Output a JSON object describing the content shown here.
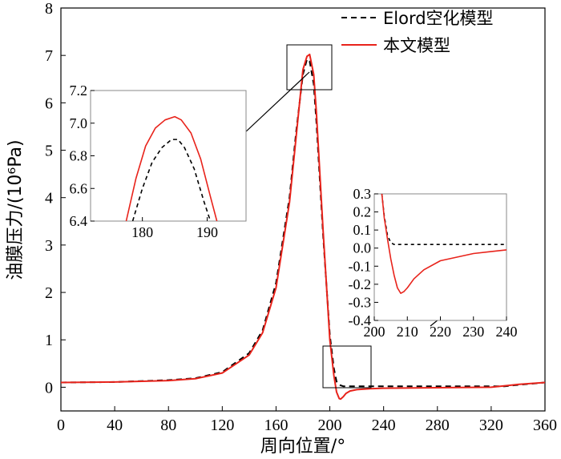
{
  "chart_data": [
    {
      "type": "line",
      "xlabel": "周向位置/°",
      "ylabel": "油膜压力/(10⁶Pa)",
      "xlim": [
        0,
        360
      ],
      "ylim": [
        -0.5,
        8
      ],
      "xticks": [
        0,
        40,
        80,
        120,
        160,
        200,
        240,
        280,
        320,
        360
      ],
      "yticks": [
        0,
        1,
        2,
        3,
        4,
        5,
        6,
        7,
        8
      ],
      "legend_position": "top-right",
      "series": [
        {
          "name": "Elord空化模型",
          "style": "dashed",
          "color": "#000000",
          "x": [
            0,
            40,
            80,
            100,
            120,
            140,
            150,
            160,
            170,
            175,
            180,
            183,
            185,
            188,
            190,
            195,
            200,
            203,
            205,
            207,
            210,
            220,
            240,
            280,
            320,
            330,
            340,
            360
          ],
          "y": [
            0.1,
            0.11,
            0.15,
            0.19,
            0.32,
            0.72,
            1.2,
            2.2,
            4.0,
            5.4,
            6.6,
            6.92,
            6.88,
            6.4,
            5.6,
            3.2,
            1.1,
            0.4,
            0.12,
            0.05,
            0.02,
            0.02,
            0.02,
            0.02,
            0.02,
            0.02,
            0.05,
            0.1
          ]
        },
        {
          "name": "本文模型",
          "style": "solid",
          "color": "#e8231b",
          "x": [
            0,
            40,
            80,
            100,
            120,
            140,
            150,
            160,
            170,
            175,
            180,
            183,
            185,
            188,
            190,
            195,
            200,
            203,
            205,
            207,
            208,
            210,
            212,
            215,
            220,
            230,
            240,
            280,
            320,
            340,
            360
          ],
          "y": [
            0.1,
            0.11,
            0.14,
            0.18,
            0.3,
            0.68,
            1.15,
            2.1,
            3.9,
            5.3,
            6.7,
            6.98,
            7.02,
            6.6,
            5.8,
            3.3,
            1.0,
            0.25,
            -0.1,
            -0.24,
            -0.25,
            -0.2,
            -0.13,
            -0.08,
            -0.05,
            -0.03,
            -0.02,
            -0.01,
            0.0,
            0.06,
            0.1
          ]
        }
      ]
    },
    {
      "type": "line",
      "xlim": [
        172,
        196
      ],
      "ylim": [
        6.4,
        7.2
      ],
      "xticks": [
        180,
        190
      ],
      "yticks": [
        6.4,
        6.6,
        6.8,
        7.0,
        7.2
      ],
      "series": [
        {
          "style": "dashed",
          "color": "#000000",
          "x": [
            178.5,
            180,
            181.5,
            183,
            184.5,
            185.5,
            186.5,
            188,
            189.5,
            190.5
          ],
          "y": [
            6.4,
            6.6,
            6.76,
            6.85,
            6.9,
            6.9,
            6.85,
            6.72,
            6.52,
            6.4
          ]
        },
        {
          "style": "solid",
          "color": "#e8231b",
          "x": [
            177.5,
            179,
            180.5,
            182,
            183.5,
            185,
            186,
            187.5,
            189,
            190.5,
            191.5
          ],
          "y": [
            6.4,
            6.66,
            6.86,
            6.97,
            7.02,
            7.04,
            7.02,
            6.94,
            6.78,
            6.55,
            6.4
          ]
        }
      ]
    },
    {
      "type": "line",
      "xlim": [
        200,
        240
      ],
      "ylim": [
        -0.4,
        0.3
      ],
      "xticks": [
        200,
        210,
        220,
        230,
        240
      ],
      "yticks": [
        -0.4,
        -0.3,
        -0.2,
        -0.1,
        0.0,
        0.1,
        0.2,
        0.3
      ],
      "series": [
        {
          "style": "dashed",
          "color": "#000000",
          "x": [
            202.3,
            203,
            204,
            205,
            206,
            208,
            240
          ],
          "y": [
            0.3,
            0.18,
            0.07,
            0.03,
            0.02,
            0.02,
            0.02
          ]
        },
        {
          "style": "solid",
          "color": "#e8231b",
          "x": [
            202.3,
            203,
            204,
            205,
            206,
            207,
            208,
            209,
            210,
            212,
            215,
            220,
            225,
            230,
            235,
            240
          ],
          "y": [
            0.3,
            0.17,
            0.05,
            -0.06,
            -0.15,
            -0.22,
            -0.25,
            -0.24,
            -0.22,
            -0.17,
            -0.12,
            -0.07,
            -0.05,
            -0.03,
            -0.02,
            -0.01
          ]
        }
      ]
    }
  ]
}
